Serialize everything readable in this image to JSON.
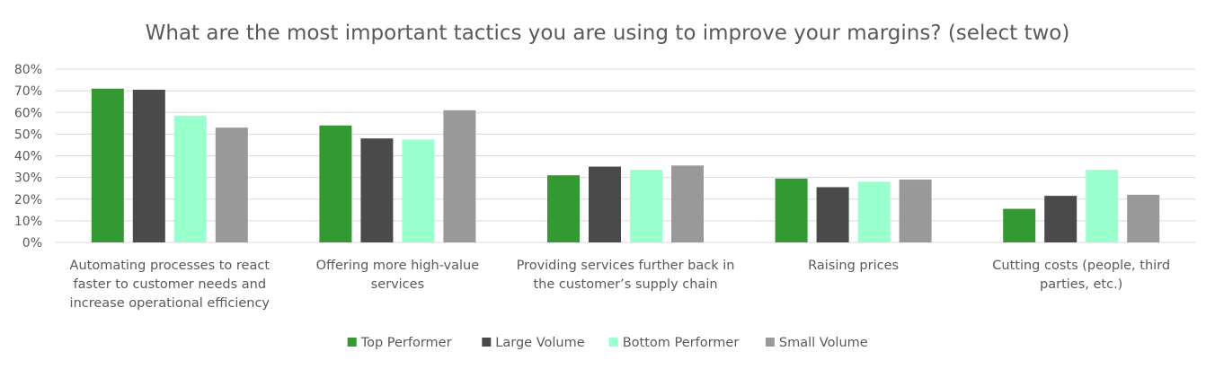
{
  "chart_data": {
    "type": "bar",
    "title": "What are the most important tactics you are using to improve your margins? (select two)",
    "xlabel": "",
    "ylabel": "",
    "ylim": [
      0,
      80
    ],
    "yticks": [
      "0%",
      "10%",
      "20%",
      "30%",
      "40%",
      "50%",
      "60%",
      "70%",
      "80%"
    ],
    "ytick_values": [
      0,
      10,
      20,
      30,
      40,
      50,
      60,
      70,
      80
    ],
    "grid": true,
    "legend_position": "bottom",
    "categories": [
      [
        "Automating processes to react",
        "faster to customer needs and",
        "increase operational efficiency"
      ],
      [
        "Offering more high-value",
        "services"
      ],
      [
        "Providing services further back in",
        "the customer’s supply chain"
      ],
      [
        "Raising prices"
      ],
      [
        "Cutting costs (people, third",
        "parties, etc.)"
      ]
    ],
    "series": [
      {
        "name": "Top Performer",
        "color": "#339933",
        "values": [
          71,
          54,
          31,
          29.5,
          15.5
        ]
      },
      {
        "name": "Large Volume",
        "color": "#4a4a4a",
        "values": [
          70.5,
          48,
          35,
          25.5,
          21.5
        ]
      },
      {
        "name": "Bottom Performer",
        "color": "#99ffcc",
        "values": [
          58.5,
          47.5,
          33.5,
          28,
          33.5
        ]
      },
      {
        "name": "Small Volume",
        "color": "#999999",
        "values": [
          53,
          61,
          35.5,
          29,
          22
        ]
      }
    ]
  }
}
